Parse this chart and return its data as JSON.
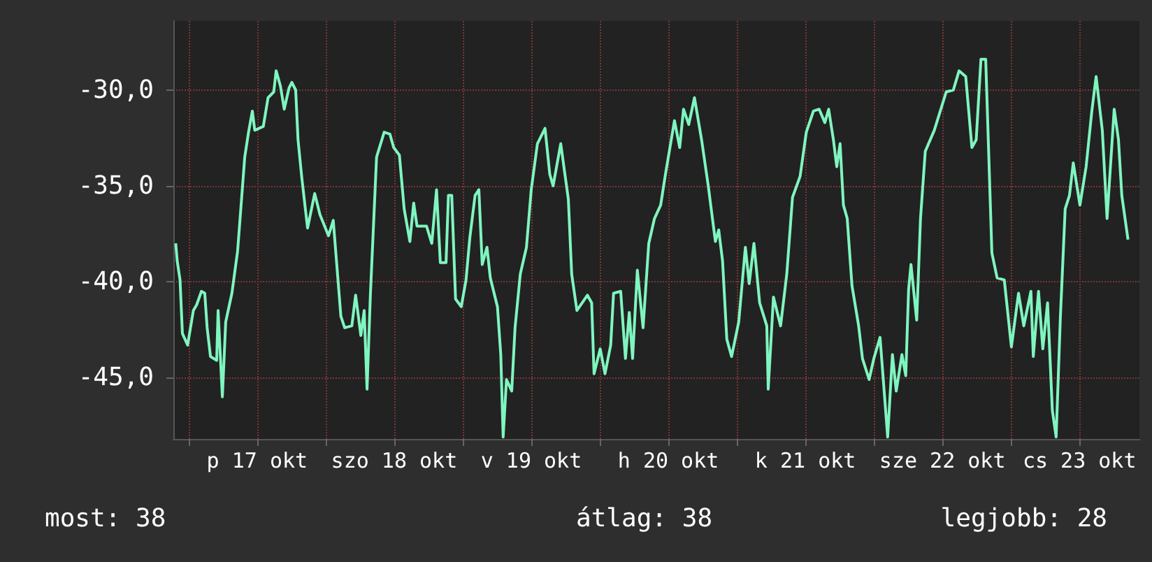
{
  "chart_data": {
    "type": "line",
    "xlim": [
      "--10-16T21:20",
      "--10-23T22:30"
    ],
    "xticks": [
      {
        "value": "--10-17T00:00",
        "label": null
      },
      {
        "value": "--10-17T12:00",
        "label": "p 17 okt"
      },
      {
        "value": "--10-18T00:00",
        "label": null
      },
      {
        "value": "--10-18T12:00",
        "label": "szo 18 okt"
      },
      {
        "value": "--10-19T00:00",
        "label": null
      },
      {
        "value": "--10-19T12:00",
        "label": "v 19 okt"
      },
      {
        "value": "--10-20T00:00",
        "label": null
      },
      {
        "value": "--10-20T12:00",
        "label": "h 20 okt"
      },
      {
        "value": "--10-21T00:00",
        "label": null
      },
      {
        "value": "--10-21T12:00",
        "label": "k 21 okt"
      },
      {
        "value": "--10-22T00:00",
        "label": null
      },
      {
        "value": "--10-22T12:00",
        "label": "sze 22 okt"
      },
      {
        "value": "--10-23T00:00",
        "label": null
      },
      {
        "value": "--10-23T12:00",
        "label": "cs 23 okt"
      }
    ],
    "ylim": [
      -48.2,
      -26.4
    ],
    "yticks": [
      {
        "value": -45,
        "label": "-45,0"
      },
      {
        "value": -40,
        "label": "-40,0"
      },
      {
        "value": -35,
        "label": "-35,0"
      },
      {
        "value": -30,
        "label": "-30,0"
      }
    ],
    "grid": true,
    "marker": "none",
    "annotations": [
      "most: 38",
      "átlag: 38",
      "legjobb: 28"
    ],
    "series": [
      {
        "color": "#7ff5bf",
        "x": [
          "--10-16T21:45",
          "--10-16T22:00",
          "--10-16T22:30",
          "--10-16T22:55",
          "--10-16T23:50",
          "--10-17T00:50",
          "--10-17T01:25",
          "--10-17T02:15",
          "--10-17T02:50",
          "--10-17T03:15",
          "--10-17T03:50",
          "--10-17T04:55",
          "--10-17T05:10",
          "--10-17T05:55",
          "--10-17T06:30",
          "--10-17T07:35",
          "--10-17T08:35",
          "--10-17T09:50",
          "--10-17T10:30",
          "--10-17T11:10",
          "--10-17T11:35",
          "--10-17T13:05",
          "--10-17T13:55",
          "--10-17T14:55",
          "--10-17T15:20",
          "--10-17T16:05",
          "--10-17T16:45",
          "--10-17T17:35",
          "--10-17T18:05",
          "--10-17T18:45",
          "--10-17T19:10",
          "--10-17T19:50",
          "--10-17T20:50",
          "--10-17T22:05",
          "--10-17T23:00",
          "--10-18T00:30",
          "--10-18T01:20",
          "--10-18T02:40",
          "--10-18T03:20",
          "--10-18T04:35",
          "--10-18T05:15",
          "--10-18T06:10",
          "--10-18T06:45",
          "--10-18T07:15",
          "--10-18T07:50",
          "--10-18T08:55",
          "--10-18T10:15",
          "--10-18T11:15",
          "--10-18T11:55",
          "--10-18T12:55",
          "--10-18T13:45",
          "--10-18T14:45",
          "--10-18T15:25",
          "--10-18T16:00",
          "--10-18T17:40",
          "--10-18T18:35",
          "--10-18T19:25",
          "--10-18T20:05",
          "--10-18T21:05",
          "--10-18T21:30",
          "--10-18T22:05",
          "--10-18T22:45",
          "--10-18T23:45",
          "--10-19T00:35",
          "--10-19T01:15",
          "--10-19T02:10",
          "--10-19T02:50",
          "--10-19T03:25",
          "--10-19T04:15",
          "--10-19T04:50",
          "--10-19T06:05",
          "--10-19T06:40",
          "--10-19T07:05",
          "--10-19T07:40",
          "--10-19T08:35",
          "--10-19T09:10",
          "--10-19T10:05",
          "--10-19T11:10",
          "--10-19T12:00",
          "--10-19T13:05",
          "--10-19T14:25",
          "--10-19T15:15",
          "--10-19T15:50",
          "--10-19T17:10",
          "--10-19T18:30",
          "--10-19T19:05",
          "--10-19T20:00",
          "--10-19T21:50",
          "--10-19T22:35",
          "--10-19T23:00",
          "--10-20T00:05",
          "--10-20T00:55",
          "--10-20T01:55",
          "--10-20T02:25",
          "--10-20T03:40",
          "--10-20T04:30",
          "--10-20T05:10",
          "--10-20T05:45",
          "--10-20T06:35",
          "--10-20T07:35",
          "--10-20T08:35",
          "--10-20T09:35",
          "--10-20T10:40",
          "--10-20T11:30",
          "--10-20T13:05",
          "--10-20T14:00",
          "--10-20T14:40",
          "--10-20T15:35",
          "--10-20T16:35",
          "--10-20T17:50",
          "--10-20T19:00",
          "--10-20T20:15",
          "--10-20T20:50",
          "--10-20T21:30",
          "--10-20T22:15",
          "--10-20T23:05",
          "--10-21T00:20",
          "--10-21T01:30",
          "--10-21T02:10",
          "--10-21T03:00",
          "--10-21T04:00",
          "--10-21T05:15",
          "--10-21T05:30",
          "--10-21T06:25",
          "--10-21T07:40",
          "--10-21T08:45",
          "--10-21T09:45",
          "--10-21T11:05",
          "--10-21T12:10",
          "--10-21T13:25",
          "--10-21T14:25",
          "--10-21T15:25",
          "--10-21T16:05",
          "--10-21T16:55",
          "--10-21T17:30",
          "--10-21T18:05",
          "--10-21T18:40",
          "--10-21T19:20",
          "--10-21T20:10",
          "--10-21T21:20",
          "--10-21T22:00",
          "--10-21T23:10",
          "--10-22T00:00",
          "--10-22T01:05",
          "--10-22T02:25",
          "--10-22T03:15",
          "--10-22T03:55",
          "--10-22T04:55",
          "--10-22T05:35",
          "--10-22T06:05",
          "--10-22T06:30",
          "--10-22T07:30",
          "--10-22T08:10",
          "--10-22T09:00",
          "--10-22T10:35",
          "--10-22T12:40",
          "--10-22T13:55",
          "--10-22T14:55",
          "--10-22T16:05",
          "--10-22T17:10",
          "--10-22T17:55",
          "--10-22T18:45",
          "--10-22T19:35",
          "--10-22T20:40",
          "--10-22T21:35",
          "--10-22T22:50",
          "--10-23T00:05",
          "--10-23T01:20",
          "--10-23T02:15",
          "--10-23T03:30",
          "--10-23T03:55",
          "--10-23T04:50",
          "--10-23T05:35",
          "--10-23T06:25",
          "--10-23T07:15",
          "--10-23T07:55",
          "--10-23T08:40",
          "--10-23T09:30",
          "--10-23T10:15",
          "--10-23T10:55",
          "--10-23T12:05",
          "--10-23T13:10",
          "--10-23T14:10",
          "--10-23T14:55",
          "--10-23T16:00",
          "--10-23T16:50",
          "--10-23T18:05",
          "--10-23T18:50",
          "--10-23T19:25",
          "--10-23T20:30"
        ],
        "values": [
          -38.0,
          -38.9,
          -39.9,
          -42.7,
          -43.3,
          -41.5,
          -41.2,
          -40.5,
          -40.6,
          -42.4,
          -43.9,
          -44.1,
          -41.5,
          -46.0,
          -42.1,
          -40.6,
          -38.4,
          -33.5,
          -32.2,
          -31.1,
          -32.1,
          -31.9,
          -30.4,
          -30.1,
          -29.0,
          -29.8,
          -31.0,
          -29.9,
          -29.6,
          -30.0,
          -32.6,
          -34.6,
          -37.2,
          -35.4,
          -36.5,
          -37.6,
          -36.8,
          -41.8,
          -42.4,
          -42.3,
          -40.7,
          -42.8,
          -41.5,
          -45.6,
          -40.7,
          -33.5,
          -32.2,
          -32.3,
          -33.0,
          -33.4,
          -36.2,
          -37.9,
          -35.9,
          -37.1,
          -37.1,
          -38.0,
          -35.2,
          -39.0,
          -39.0,
          -35.5,
          -35.5,
          -40.9,
          -41.3,
          -39.9,
          -37.7,
          -35.5,
          -35.2,
          -39.1,
          -38.2,
          -39.8,
          -41.3,
          -43.8,
          -48.1,
          -45.1,
          -45.7,
          -42.4,
          -39.6,
          -38.2,
          -35.2,
          -32.8,
          -32.0,
          -34.4,
          -35.0,
          -32.8,
          -35.7,
          -39.6,
          -41.5,
          -40.7,
          -41.1,
          -44.8,
          -43.5,
          -44.8,
          -43.3,
          -40.6,
          -40.5,
          -44.0,
          -41.6,
          -44.0,
          -39.4,
          -42.4,
          -38.0,
          -36.7,
          -36.0,
          -34.4,
          -31.6,
          -33.0,
          -31.0,
          -31.8,
          -30.4,
          -32.6,
          -35.0,
          -37.9,
          -37.3,
          -38.9,
          -43.0,
          -43.9,
          -42.1,
          -38.2,
          -40.1,
          -38.0,
          -41.1,
          -42.3,
          -45.6,
          -40.8,
          -42.3,
          -39.6,
          -35.6,
          -34.5,
          -32.2,
          -31.1,
          -31.0,
          -31.7,
          -31.0,
          -32.6,
          -34.0,
          -32.8,
          -36.0,
          -36.7,
          -40.2,
          -42.3,
          -44.0,
          -45.1,
          -44.0,
          -42.9,
          -48.1,
          -43.8,
          -45.7,
          -43.8,
          -44.9,
          -40.4,
          -39.1,
          -42.0,
          -36.7,
          -33.2,
          -32.1,
          -30.1,
          -30.0,
          -29.0,
          -29.3,
          -33.0,
          -32.6,
          -28.4,
          -28.4,
          -38.5,
          -39.8,
          -39.9,
          -43.4,
          -40.6,
          -42.3,
          -40.5,
          -43.9,
          -40.5,
          -43.5,
          -41.1,
          -46.7,
          -48.1,
          -41.8,
          -36.2,
          -35.5,
          -33.8,
          -36.0,
          -34.0,
          -31.1,
          -29.3,
          -32.1,
          -36.7,
          -31.0,
          -32.6,
          -35.5,
          -37.8
        ]
      }
    ]
  }
}
